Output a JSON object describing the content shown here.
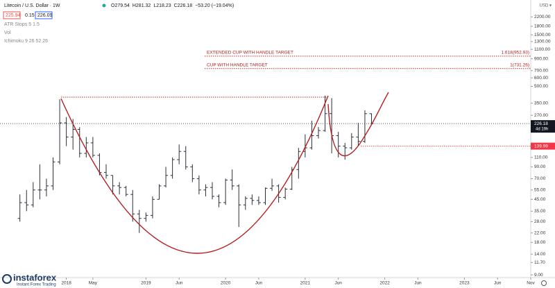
{
  "chart_data": {
    "type": "candlestick",
    "title": "Litecoin / U.S. Dollar · 1W",
    "quote": [
      "O279.54",
      "H281.32",
      "L218.23",
      "C226.18",
      "−53.20 (−19.04%)"
    ],
    "indicators": {
      "atr_values": [
        "225.94",
        "0.15",
        "226.09"
      ],
      "names": [
        "ATR Stops 5 1.5",
        "Vol",
        "Ichimoku 9 26 52 26"
      ]
    },
    "currency": "USD ▾",
    "color": "#2a2e39",
    "log_scale": true,
    "x": [
      "2017-06",
      "2017-07",
      "2017-08",
      "2017-09",
      "2017-10",
      "2017-11",
      "2017-12",
      "2018-01",
      "2018-02",
      "2018-03",
      "2018-04",
      "2018-05",
      "2018-06",
      "2018-07",
      "2018-08",
      "2018-09",
      "2018-10",
      "2018-11",
      "2018-12",
      "2019-01",
      "2019-02",
      "2019-03",
      "2019-04",
      "2019-05",
      "2019-06",
      "2019-07",
      "2019-08",
      "2019-09",
      "2019-10",
      "2019-11",
      "2019-12",
      "2020-01",
      "2020-02",
      "2020-03",
      "2020-04",
      "2020-05",
      "2020-06",
      "2020-07",
      "2020-08",
      "2020-09",
      "2020-10",
      "2020-11",
      "2020-12",
      "2021-01",
      "2021-02",
      "2021-03",
      "2021-04",
      "2021-05",
      "2021-06",
      "2021-07",
      "2021-08",
      "2021-09",
      "2021-10",
      "2021-11"
    ],
    "open": [
      30,
      42,
      40,
      55,
      55,
      60,
      100,
      230,
      170,
      200,
      120,
      150,
      115,
      80,
      75,
      60,
      58,
      50,
      33,
      30,
      32,
      45,
      60,
      75,
      105,
      125,
      90,
      70,
      55,
      58,
      48,
      42,
      68,
      60,
      40,
      46,
      44,
      42,
      57,
      60,
      47,
      56,
      85,
      125,
      135,
      175,
      195,
      280,
      175,
      140,
      135,
      170,
      155,
      279.54
    ],
    "high": [
      50,
      55,
      65,
      95,
      70,
      110,
      380,
      260,
      250,
      210,
      170,
      170,
      120,
      95,
      75,
      65,
      60,
      55,
      36,
      34,
      48,
      62,
      90,
      110,
      145,
      140,
      95,
      75,
      62,
      65,
      50,
      70,
      85,
      62,
      48,
      50,
      48,
      58,
      70,
      62,
      58,
      90,
      135,
      180,
      240,
      210,
      410,
      390,
      190,
      150,
      185,
      230,
      300,
      281.32
    ],
    "low": [
      28,
      35,
      38,
      45,
      48,
      55,
      95,
      140,
      130,
      110,
      110,
      110,
      75,
      70,
      50,
      50,
      48,
      28,
      22,
      28,
      30,
      45,
      58,
      70,
      95,
      85,
      65,
      50,
      48,
      45,
      38,
      40,
      55,
      25,
      36,
      40,
      40,
      40,
      54,
      42,
      45,
      55,
      70,
      110,
      130,
      165,
      190,
      120,
      110,
      105,
      130,
      140,
      150,
      218.23
    ],
    "close": [
      42,
      40,
      55,
      55,
      60,
      100,
      230,
      170,
      200,
      120,
      150,
      115,
      80,
      75,
      60,
      58,
      50,
      33,
      30,
      32,
      45,
      60,
      75,
      105,
      125,
      90,
      70,
      55,
      58,
      48,
      42,
      68,
      60,
      40,
      46,
      44,
      42,
      57,
      60,
      47,
      56,
      85,
      125,
      135,
      175,
      195,
      280,
      175,
      140,
      135,
      170,
      155,
      279.54,
      226.18
    ],
    "xlim": [
      "2017-03",
      "2023-11"
    ],
    "xticks": [
      {
        "value": "2018-01",
        "label": "2018"
      },
      {
        "value": "2018-05",
        "label": "May"
      },
      {
        "value": "2019-01",
        "label": "2019"
      },
      {
        "value": "2019-06",
        "label": "Jun"
      },
      {
        "value": "2020-01",
        "label": "2020"
      },
      {
        "value": "2020-06",
        "label": "Jun"
      },
      {
        "value": "2021-01",
        "label": "2021"
      },
      {
        "value": "2021-06",
        "label": "Jun"
      },
      {
        "value": "2022-01",
        "label": "2022"
      },
      {
        "value": "2022-06",
        "label": "Jun"
      },
      {
        "value": "2023-01",
        "label": "2023"
      },
      {
        "value": "2023-06",
        "label": "Jun"
      },
      {
        "value": "2023-11",
        "label": "Nov"
      }
    ],
    "ylim": [
      8.5,
      2800
    ],
    "yticks": [
      {
        "value": 2200,
        "label": "2200.00"
      },
      {
        "value": 1800,
        "label": "1800.00"
      },
      {
        "value": 1500,
        "label": "1500.00"
      },
      {
        "value": 1300,
        "label": "1300.00"
      },
      {
        "value": 1100,
        "label": "1100.00"
      },
      {
        "value": 900,
        "label": "900.00"
      },
      {
        "value": 700,
        "label": "700.00"
      },
      {
        "value": 600,
        "label": "600.00"
      },
      {
        "value": 500,
        "label": "500.00"
      },
      {
        "value": 350,
        "label": "350.00"
      },
      {
        "value": 270,
        "label": "270.00"
      },
      {
        "value": 110,
        "label": "110.00"
      },
      {
        "value": 90,
        "label": "90.00"
      },
      {
        "value": 70,
        "label": "70.00"
      },
      {
        "value": 55,
        "label": "55.00"
      },
      {
        "value": 45,
        "label": "45.00"
      },
      {
        "value": 35,
        "label": "35.00"
      },
      {
        "value": 28,
        "label": "28.00"
      },
      {
        "value": 22,
        "label": "22.00"
      },
      {
        "value": 18,
        "label": "18.00"
      },
      {
        "value": 14,
        "label": "14.00"
      },
      {
        "value": 11.7,
        "label": "11.70"
      },
      {
        "value": 9,
        "label": "9.00"
      }
    ],
    "last_price": {
      "value": 226.18,
      "countdown": "4d 19h"
    },
    "level": 139.99,
    "annotations": [
      {
        "text": "EXTENDED CUP WITH HANDLE TARGET",
        "value": 952.93,
        "label": "1.618(952.93)"
      },
      {
        "text": "CUP WITH HANDLE TARGET",
        "value": 731.26,
        "label": "1(731.26)"
      }
    ]
  },
  "watermark": {
    "brand": "instaforex",
    "tagline": "Instant Forex Trading"
  }
}
